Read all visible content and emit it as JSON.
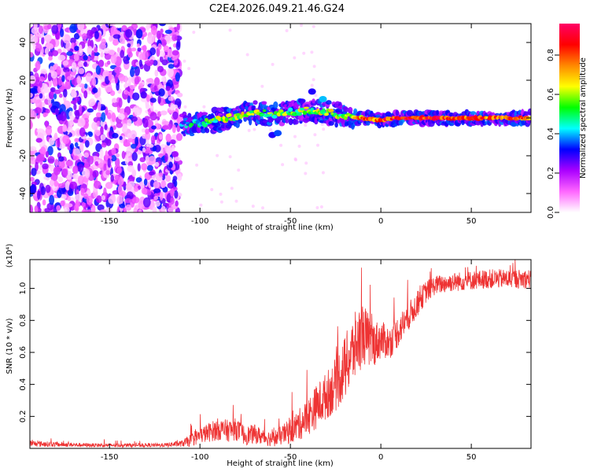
{
  "title": "C2E4.2026.049.21.46.G24",
  "chart_data": [
    {
      "type": "heatmap",
      "xlabel": "Height of straight line (km)",
      "ylabel": "Frequency (Hz)",
      "xlim": [
        -194,
        83
      ],
      "ylim": [
        -50,
        50
      ],
      "xticks": [
        -150,
        -100,
        -50,
        0,
        50
      ],
      "yticks": [
        -40,
        -20,
        0,
        20,
        40
      ],
      "colorbar": {
        "label": "Normalized spectral amplitude",
        "range": [
          0.0,
          0.96
        ],
        "ticks": [
          0.0,
          0.2,
          0.4,
          0.6,
          0.8
        ],
        "colormap": [
          "#ffffff",
          "#ff66ff",
          "#aa00ff",
          "#0000ff",
          "#00ffff",
          "#00ff00",
          "#ffff00",
          "#ff8800",
          "#ff0000",
          "#ff0066"
        ]
      },
      "features": {
        "noise_region_x": [
          -194,
          -111
        ],
        "signal_track": [
          {
            "x": -110,
            "f": -3.5,
            "a": 0.35
          },
          {
            "x": -100,
            "f": -3.0,
            "a": 0.45
          },
          {
            "x": -90,
            "f": -1.0,
            "a": 0.55
          },
          {
            "x": -80,
            "f": 1.0,
            "a": 0.6
          },
          {
            "x": -70,
            "f": 3.0,
            "a": 0.6
          },
          {
            "x": -60,
            "f": 2.0,
            "a": 0.5
          },
          {
            "x": -50,
            "f": 3.0,
            "a": 0.55
          },
          {
            "x": -40,
            "f": 4.0,
            "a": 0.55
          },
          {
            "x": -30,
            "f": 3.0,
            "a": 0.6
          },
          {
            "x": -20,
            "f": 1.0,
            "a": 0.55
          },
          {
            "x": -10,
            "f": 0.0,
            "a": 0.75
          },
          {
            "x": 0,
            "f": -1.0,
            "a": 0.8
          },
          {
            "x": 10,
            "f": 0.0,
            "a": 0.85
          },
          {
            "x": 30,
            "f": 0.0,
            "a": 0.85
          },
          {
            "x": 50,
            "f": 0.0,
            "a": 0.8
          },
          {
            "x": 83,
            "f": 0.0,
            "a": 0.75
          }
        ]
      }
    },
    {
      "type": "line",
      "xlabel": "Height of straight line (km)",
      "ylabel": "SNR (10 * v/v)",
      "scale_note": "(x10⁴)",
      "xlim": [
        -194,
        83
      ],
      "ylim": [
        0,
        1.18
      ],
      "xticks": [
        -150,
        -100,
        -50,
        0,
        50
      ],
      "yticks": [
        0.2,
        0.4,
        0.6,
        0.8,
        1.0
      ],
      "color": "#ee3333",
      "series": [
        {
          "x": [
            -194,
            -180,
            -160,
            -140,
            -120,
            -110,
            -105,
            -100,
            -95,
            -90,
            -85,
            -80,
            -75,
            -70,
            -65,
            -60,
            -55,
            -50,
            -45,
            -40,
            -35,
            -30,
            -25,
            -20,
            -15,
            -10,
            -5,
            0,
            5,
            10,
            15,
            20,
            25,
            30,
            40,
            50,
            60,
            70,
            83
          ],
          "y": [
            0.03,
            0.025,
            0.02,
            0.02,
            0.02,
            0.03,
            0.05,
            0.08,
            0.1,
            0.12,
            0.11,
            0.12,
            0.08,
            0.09,
            0.07,
            0.06,
            0.08,
            0.11,
            0.15,
            0.2,
            0.27,
            0.33,
            0.4,
            0.5,
            0.62,
            0.72,
            0.65,
            0.68,
            0.66,
            0.74,
            0.82,
            0.9,
            0.98,
            1.02,
            1.04,
            1.05,
            1.06,
            1.06,
            1.06
          ],
          "noise": [
            0.02,
            0.015,
            0.012,
            0.012,
            0.012,
            0.02,
            0.04,
            0.05,
            0.06,
            0.07,
            0.07,
            0.07,
            0.06,
            0.06,
            0.05,
            0.05,
            0.06,
            0.08,
            0.1,
            0.12,
            0.14,
            0.15,
            0.17,
            0.2,
            0.22,
            0.2,
            0.15,
            0.12,
            0.1,
            0.1,
            0.09,
            0.08,
            0.07,
            0.06,
            0.06,
            0.06,
            0.06,
            0.06,
            0.06
          ]
        }
      ]
    }
  ]
}
